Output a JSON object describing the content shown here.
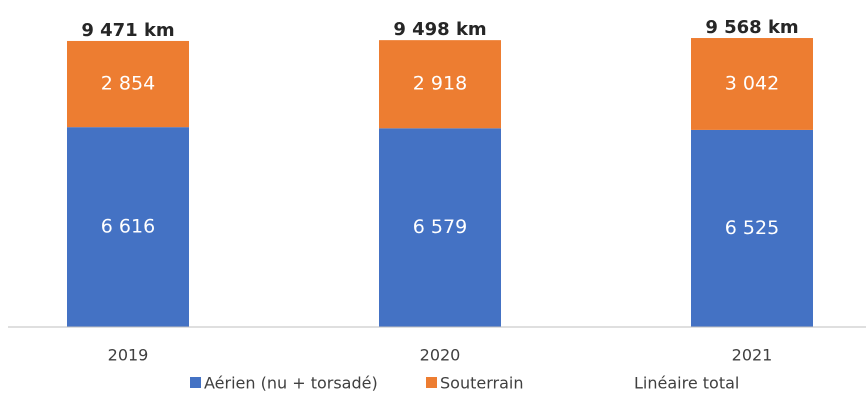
{
  "chart_data": {
    "type": "stacked_bar",
    "categories": [
      "2019",
      "2020",
      "2021"
    ],
    "series": [
      {
        "name": "Aérien (nu + torsadé)",
        "color": "#4472c4",
        "values": [
          6616,
          6579,
          6525
        ],
        "value_labels": [
          "6 616",
          "6 579",
          "6 525"
        ]
      },
      {
        "name": "Souterrain",
        "color": "#ed7d31",
        "values": [
          2854,
          2918,
          3042
        ],
        "value_labels": [
          "2 854",
          "2 918",
          "3 042"
        ]
      },
      {
        "name": "Linéaire total",
        "values": [
          9471,
          9498,
          9568
        ],
        "value_labels": [
          "9 471 km",
          "9 498 km",
          "9 568 km"
        ]
      }
    ]
  }
}
